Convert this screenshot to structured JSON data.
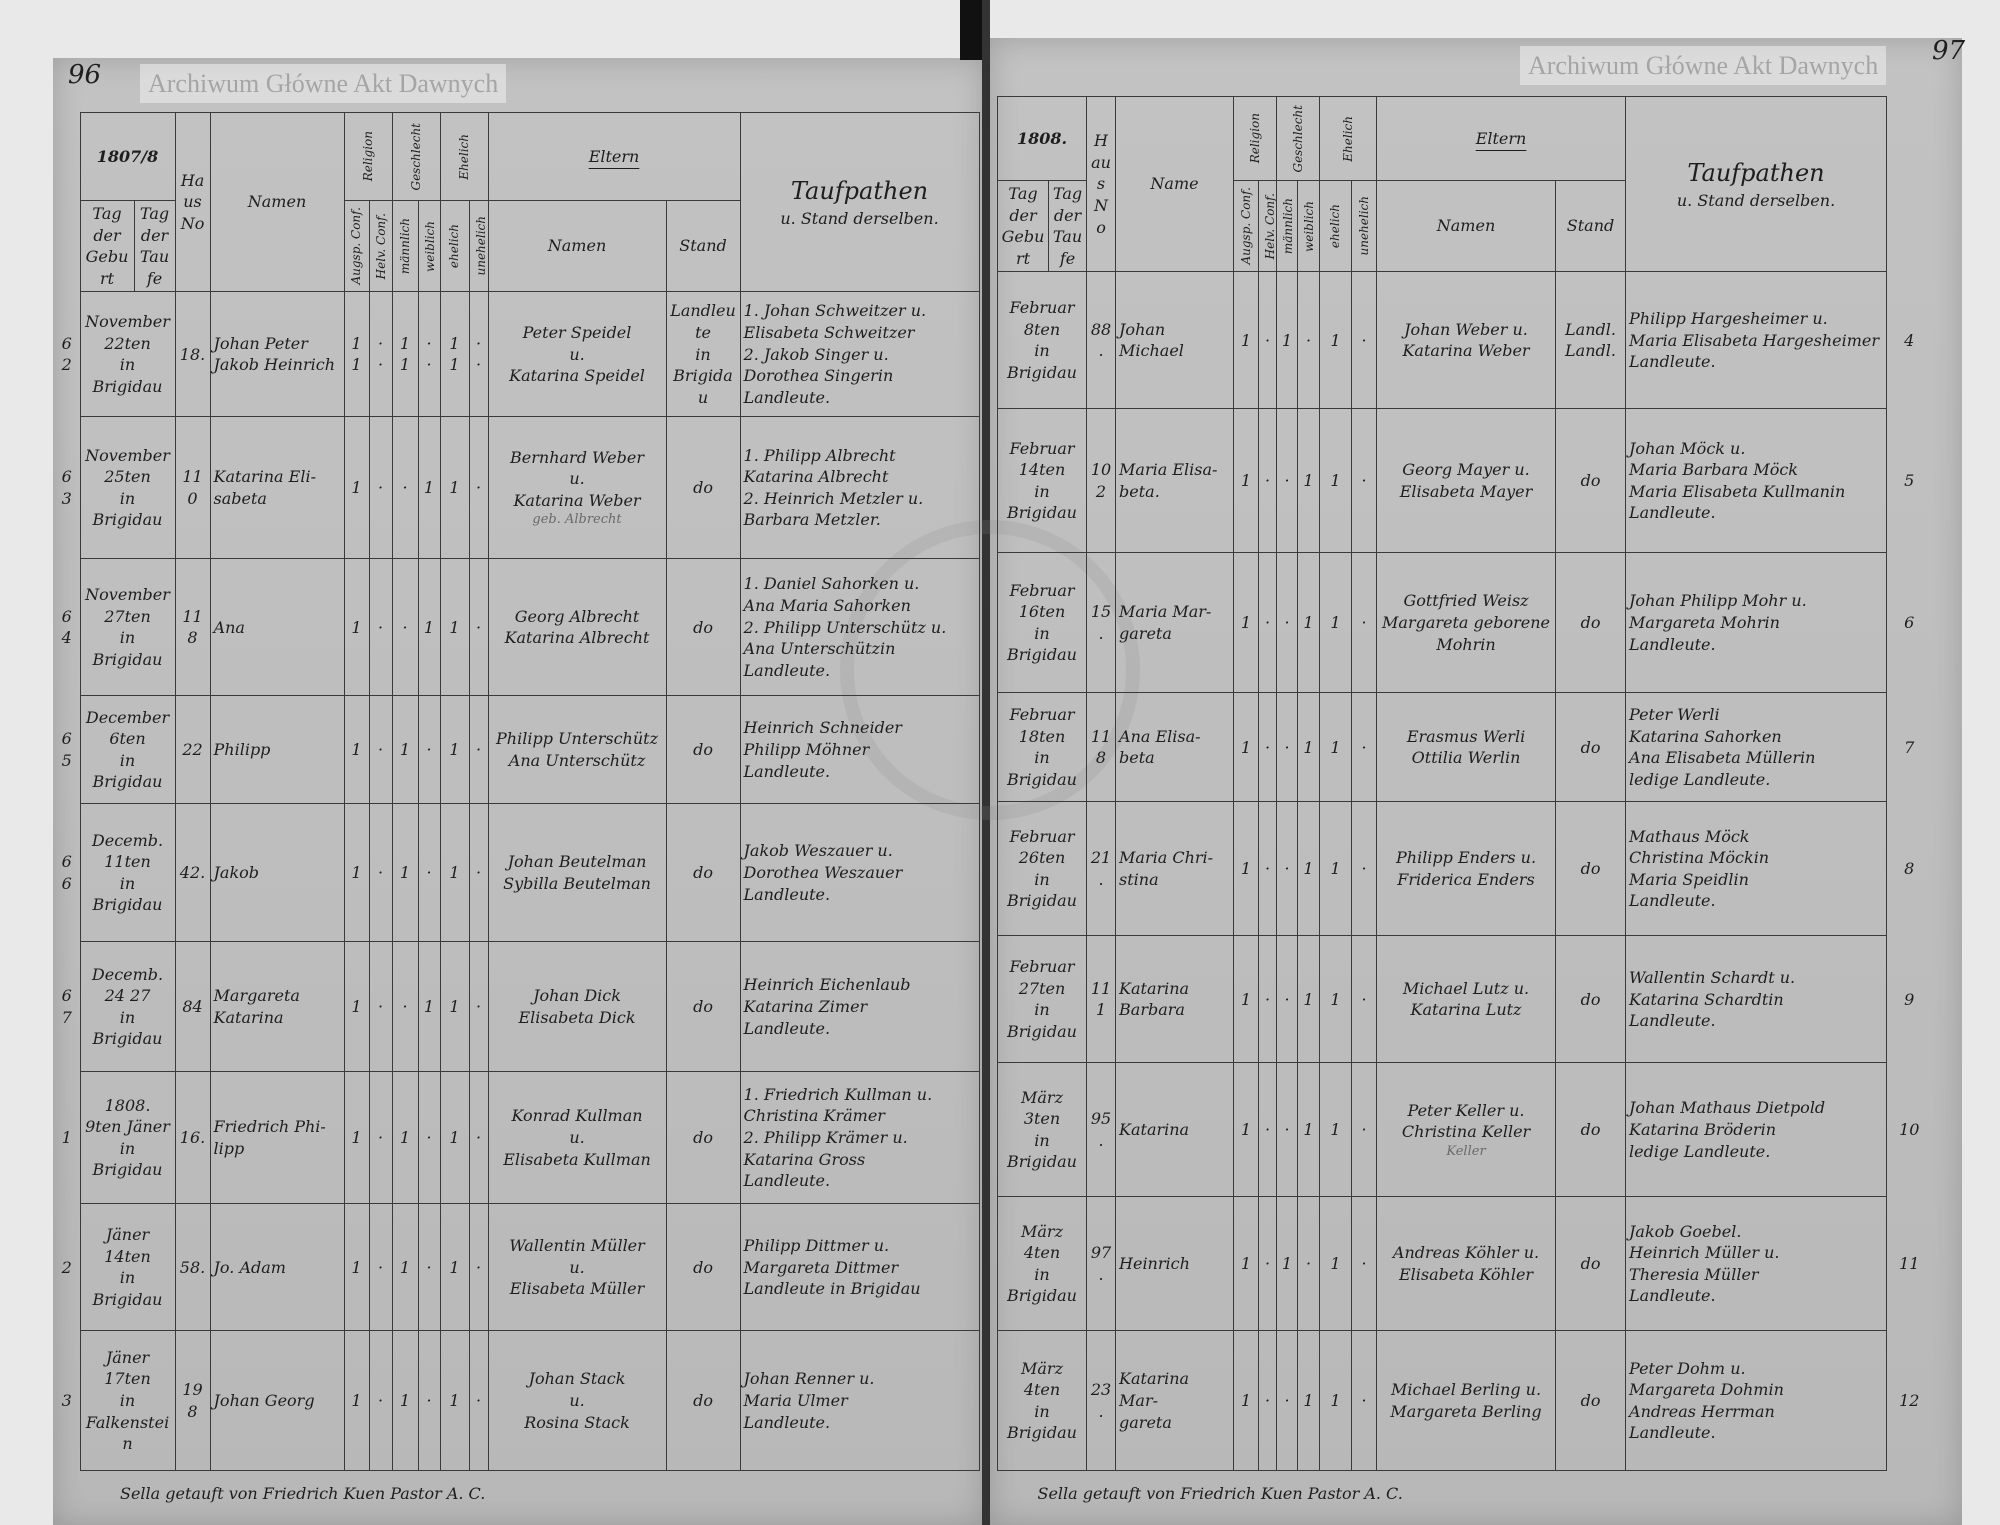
{
  "pages": {
    "left": {
      "page_number": "96",
      "year": "1807/8",
      "header": {
        "tag_geburt": "Tag der Geburt",
        "tag_taufe": "Tag der Taufe",
        "haus_no": "Haus No",
        "namen": "Namen",
        "religion": "Religion",
        "geschlecht": "Geschlecht",
        "ehelich_group": "Ehelich",
        "augsp": "Augsp. Conf.",
        "helv": "Helv. Conf.",
        "maennlich": "männlich",
        "weiblich": "weiblich",
        "ehelich": "ehelich",
        "unehelich": "unehelich",
        "eltern": "Eltern",
        "eltern_namen": "Namen",
        "stand": "Stand",
        "taufpathen": "Taufpathen",
        "taufpathen_sub": "u. Stand derselben."
      },
      "rows": [
        {
          "no": "62",
          "date": [
            "November",
            "22ten",
            "in",
            "Brigidau"
          ],
          "house": "18.",
          "names": [
            "Johan Peter",
            "Jakob Heinrich"
          ],
          "checks": [
            [
              "1",
              "·",
              "1",
              "·",
              "1",
              "·"
            ],
            [
              "1",
              "·",
              "1",
              "·",
              "1",
              "·"
            ]
          ],
          "parents": [
            "Peter Speidel",
            "u.",
            "Katarina Speidel"
          ],
          "note": "",
          "stand": [
            "Landleute",
            "in",
            "Brigidau"
          ],
          "godparents": [
            "1. Johan Schweitzer u.",
            "Elisabeta Schweitzer",
            "2. Jakob Singer u.",
            "Dorothea Singerin",
            "Landleute."
          ]
        },
        {
          "no": "63",
          "date": [
            "November",
            "25ten",
            "in",
            "Brigidau"
          ],
          "house": "110",
          "names": [
            "Katarina Eli-",
            "sabeta"
          ],
          "checks": [
            [
              "1",
              "·",
              "·",
              "1",
              "1",
              "·"
            ]
          ],
          "parents": [
            "Bernhard Weber",
            "u.",
            "Katarina Weber"
          ],
          "note": "geb. Albrecht",
          "stand": [
            "do"
          ],
          "godparents": [
            "1. Philipp Albrecht",
            "Katarina Albrecht",
            "2. Heinrich Metzler u.",
            "Barbara Metzler."
          ]
        },
        {
          "no": "64",
          "date": [
            "November",
            "27ten",
            "in",
            "Brigidau"
          ],
          "house": "118",
          "names": [
            "Ana"
          ],
          "checks": [
            [
              "1",
              "·",
              "·",
              "1",
              "1",
              "·"
            ]
          ],
          "parents": [
            "Georg Albrecht",
            "Katarina Albrecht"
          ],
          "note": "",
          "stand": [
            "do"
          ],
          "godparents": [
            "1. Daniel Sahorken u.",
            "Ana Maria Sahorken",
            "2. Philipp Unterschütz u.",
            "Ana Unterschützin",
            "Landleute."
          ]
        },
        {
          "no": "65",
          "date": [
            "December",
            "6ten",
            "in",
            "Brigidau"
          ],
          "house": "22",
          "names": [
            "Philipp"
          ],
          "checks": [
            [
              "1",
              "·",
              "1",
              "·",
              "1",
              "·"
            ]
          ],
          "parents": [
            "Philipp Unterschütz",
            "Ana Unterschütz"
          ],
          "note": "",
          "stand": [
            "do"
          ],
          "godparents": [
            "Heinrich Schneider",
            "Philipp Möhner",
            "Landleute."
          ]
        },
        {
          "no": "66",
          "date": [
            "Decemb.",
            "11ten",
            "in",
            "Brigidau"
          ],
          "house": "42.",
          "names": [
            "Jakob"
          ],
          "checks": [
            [
              "1",
              "·",
              "1",
              "·",
              "1",
              "·"
            ]
          ],
          "parents": [
            "Johan Beutelman",
            "Sybilla Beutelman"
          ],
          "note": "",
          "stand": [
            "do"
          ],
          "godparents": [
            "Jakob Weszauer u.",
            "Dorothea Weszauer",
            "Landleute."
          ]
        },
        {
          "no": "67",
          "date": [
            "Decemb.",
            "24 27",
            "in",
            "Brigidau"
          ],
          "house": "84",
          "names": [
            "Margareta",
            "Katarina"
          ],
          "checks": [
            [
              "1",
              "·",
              "·",
              "1",
              "1",
              "·"
            ]
          ],
          "parents": [
            "Johan Dick",
            "Elisabeta Dick"
          ],
          "note": "",
          "stand": [
            "do"
          ],
          "godparents": [
            "Heinrich Eichenlaub",
            "Katarina Zimer",
            "Landleute."
          ]
        },
        {
          "no": "1",
          "date": [
            "1808.",
            "9ten Jäner",
            "in",
            "Brigidau"
          ],
          "house": "16.",
          "names": [
            "Friedrich Phi-",
            "lipp"
          ],
          "checks": [
            [
              "1",
              "·",
              "1",
              "·",
              "1",
              "·"
            ]
          ],
          "parents": [
            "Konrad Kullman",
            "u.",
            "Elisabeta Kullman"
          ],
          "note": "",
          "stand": [
            "do"
          ],
          "godparents": [
            "1. Friedrich Kullman u.",
            "Christina Krämer",
            "2. Philipp Krämer u.",
            "Katarina Gross",
            "Landleute."
          ]
        },
        {
          "no": "2",
          "date": [
            "Jäner",
            "14ten",
            "in",
            "Brigidau"
          ],
          "house": "58.",
          "names": [
            "Jo. Adam"
          ],
          "checks": [
            [
              "1",
              "·",
              "1",
              "·",
              "1",
              "·"
            ]
          ],
          "parents": [
            "Wallentin Müller",
            "u.",
            "Elisabeta Müller"
          ],
          "note": "",
          "stand": [
            "do"
          ],
          "godparents": [
            "Philipp Dittmer u.",
            "Margareta Dittmer",
            "Landleute in Brigidau"
          ]
        },
        {
          "no": "3",
          "date": [
            "Jäner",
            "17ten",
            "in",
            "Falkenstein"
          ],
          "house": "198",
          "names": [
            "Johan Georg"
          ],
          "checks": [
            [
              "1",
              "·",
              "1",
              "·",
              "1",
              "·"
            ]
          ],
          "parents": [
            "Johan Stack",
            "u.",
            "Rosina Stack"
          ],
          "note": "",
          "stand": [
            "do"
          ],
          "godparents": [
            "Johan Renner u.",
            "Maria Ulmer",
            "Landleute."
          ]
        }
      ],
      "footer": "Sella getauft von Friedrich Kuen Pastor A. C."
    },
    "right": {
      "page_number": "97",
      "year": "1808.",
      "header": {
        "tag_geburt": "Tag der Geburt",
        "tag_taufe": "Tag der Taufe",
        "haus_no": "Haus No",
        "namen": "Name",
        "religion": "Religion",
        "geschlecht": "Geschlecht",
        "ehelich_group": "Ehelich",
        "augsp": "Augsp. Conf.",
        "helv": "Helv. Conf.",
        "maennlich": "männlich",
        "weiblich": "weiblich",
        "ehelich": "ehelich",
        "unehelich": "unehelich",
        "eltern": "Eltern",
        "eltern_namen": "Namen",
        "stand": "Stand",
        "taufpathen": "Taufpathen",
        "taufpathen_sub": "u. Stand derselben."
      },
      "rows": [
        {
          "no": "4",
          "date": [
            "Februar",
            "8ten",
            "in",
            "Brigidau"
          ],
          "house": "88.",
          "names": [
            "Johan Michael"
          ],
          "checks": [
            [
              "1",
              "·",
              "1",
              "·",
              "1",
              "·"
            ]
          ],
          "parents": [
            "Johan Weber u.",
            "Katarina Weber"
          ],
          "note": "",
          "stand": [
            "Landl.",
            "Landl."
          ],
          "godparents": [
            "Philipp Hargesheimer u.",
            "Maria Elisabeta Hargesheimer",
            "Landleute."
          ]
        },
        {
          "no": "5",
          "date": [
            "Februar",
            "14ten",
            "in",
            "Brigidau"
          ],
          "house": "102",
          "names": [
            "Maria Elisa-",
            "beta."
          ],
          "checks": [
            [
              "1",
              "·",
              "·",
              "1",
              "1",
              "·"
            ]
          ],
          "parents": [
            "Georg Mayer u.",
            "Elisabeta Mayer"
          ],
          "note": "",
          "stand": [
            "do"
          ],
          "godparents": [
            "Johan Möck u.",
            "Maria Barbara Möck",
            "Maria Elisabeta Kullmanin",
            "Landleute."
          ]
        },
        {
          "no": "6",
          "date": [
            "Februar",
            "16ten",
            "in",
            "Brigidau"
          ],
          "house": "15.",
          "names": [
            "Maria Mar-",
            "gareta"
          ],
          "checks": [
            [
              "1",
              "·",
              "·",
              "1",
              "1",
              "·"
            ]
          ],
          "parents": [
            "Gottfried Weisz",
            "Margareta geborene",
            "Mohrin"
          ],
          "note": "",
          "stand": [
            "do"
          ],
          "godparents": [
            "Johan Philipp Mohr u.",
            "Margareta Mohrin",
            "Landleute."
          ]
        },
        {
          "no": "7",
          "date": [
            "Februar",
            "18ten",
            "in",
            "Brigidau"
          ],
          "house": "118",
          "names": [
            "Ana Elisa-",
            "beta"
          ],
          "checks": [
            [
              "1",
              "·",
              "·",
              "1",
              "1",
              "·"
            ]
          ],
          "parents": [
            "Erasmus Werli",
            "Ottilia Werlin"
          ],
          "note": "",
          "stand": [
            "do"
          ],
          "godparents": [
            "Peter Werli",
            "Katarina Sahorken",
            "Ana Elisabeta Müllerin",
            "ledige Landleute."
          ]
        },
        {
          "no": "8",
          "date": [
            "Februar",
            "26ten",
            "in",
            "Brigidau"
          ],
          "house": "21.",
          "names": [
            "Maria Chri-",
            "stina"
          ],
          "checks": [
            [
              "1",
              "·",
              "·",
              "1",
              "1",
              "·"
            ]
          ],
          "parents": [
            "Philipp Enders u.",
            "Friderica Enders"
          ],
          "note": "",
          "stand": [
            "do"
          ],
          "godparents": [
            "Mathaus Möck",
            "Christina Möckin",
            "Maria Speidlin",
            "Landleute."
          ]
        },
        {
          "no": "9",
          "date": [
            "Februar",
            "27ten",
            "in",
            "Brigidau"
          ],
          "house": "111",
          "names": [
            "Katarina",
            "Barbara"
          ],
          "checks": [
            [
              "1",
              "·",
              "·",
              "1",
              "1",
              "·"
            ]
          ],
          "parents": [
            "Michael Lutz u.",
            "Katarina Lutz"
          ],
          "note": "",
          "stand": [
            "do"
          ],
          "godparents": [
            "Wallentin Schardt u.",
            "Katarina Schardtin",
            "Landleute."
          ]
        },
        {
          "no": "10",
          "date": [
            "März",
            "3ten",
            "in",
            "Brigidau"
          ],
          "house": "95.",
          "names": [
            "Katarina"
          ],
          "checks": [
            [
              "1",
              "·",
              "·",
              "1",
              "1",
              "·"
            ]
          ],
          "parents": [
            "Peter Keller u.",
            "Christina Keller"
          ],
          "note": "Keller",
          "stand": [
            "do"
          ],
          "godparents": [
            "Johan Mathaus Dietpold",
            "Katarina Bröderin",
            "ledige Landleute."
          ]
        },
        {
          "no": "11",
          "date": [
            "März",
            "4ten",
            "in",
            "Brigidau"
          ],
          "house": "97.",
          "names": [
            "Heinrich"
          ],
          "checks": [
            [
              "1",
              "·",
              "1",
              "·",
              "1",
              "·"
            ]
          ],
          "parents": [
            "Andreas Köhler u.",
            "Elisabeta Köhler"
          ],
          "note": "",
          "stand": [
            "do"
          ],
          "godparents": [
            "Jakob Goebel.",
            "Heinrich Müller u.",
            "Theresia Müller",
            "Landleute."
          ]
        },
        {
          "no": "12",
          "date": [
            "März",
            "4ten",
            "in",
            "Brigidau"
          ],
          "house": "23.",
          "names": [
            "Katarina Mar-",
            "gareta"
          ],
          "checks": [
            [
              "1",
              "·",
              "·",
              "1",
              "1",
              "·"
            ]
          ],
          "parents": [
            "Michael Berling u.",
            "Margareta Berling"
          ],
          "note": "",
          "stand": [
            "do"
          ],
          "godparents": [
            "Peter Dohm u.",
            "Margareta Dohmin",
            "Andreas Herrman",
            "Landleute."
          ]
        }
      ],
      "footer": "Sella getauft von Friedrich Kuen Pastor A. C."
    }
  },
  "watermarks": {
    "top_right": "Archiwum Główne Akt Dawnych",
    "bottom_left": "Archiwum Główne Akt Dawnych",
    "seal": "Archiwum Główne Akt Dawnych"
  },
  "colors": {
    "paper": "#bfbfbf",
    "ink": "#1e1e1e",
    "background": "#e9e9e9"
  }
}
